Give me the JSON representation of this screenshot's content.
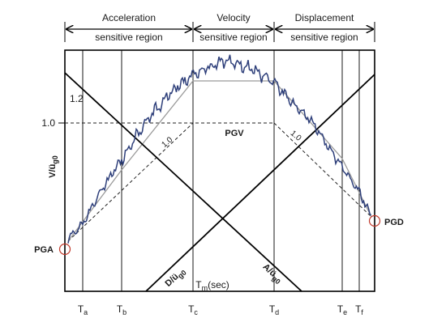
{
  "regions": {
    "acceleration": {
      "line1": "Acceleration",
      "line2": "sensitive region"
    },
    "velocity": {
      "line1": "Velocity",
      "line2": "sensitive region"
    },
    "displacement": {
      "line1": "Displacement",
      "line2": "sensitive region"
    }
  },
  "y_axis": {
    "label": "V/ü",
    "label_sub": "g0",
    "tick": "1.0",
    "tick_right": "1.2"
  },
  "x_axis": {
    "label": "T",
    "label_sub": "m",
    "label_unit": "(sec)",
    "periods": [
      {
        "main": "T",
        "sub": "a"
      },
      {
        "main": "T",
        "sub": "b"
      },
      {
        "main": "T",
        "sub": "c"
      },
      {
        "main": "T",
        "sub": "d"
      },
      {
        "main": "T",
        "sub": "e"
      },
      {
        "main": "T",
        "sub": "f"
      }
    ]
  },
  "annotations": {
    "pgv": "PGV",
    "pga": "PGA",
    "pgd": "PGD",
    "slope_left": "1.0",
    "slope_right": "1.0",
    "d_line": {
      "main": "D/ü",
      "sub": "g0"
    },
    "a_line": {
      "main": "A/ü",
      "sub": "g0"
    }
  },
  "colors": {
    "spectrum": "#2e3f7a",
    "idealized": "#9a9a9a",
    "frame": "#000000",
    "marker": "#c0392b"
  }
}
